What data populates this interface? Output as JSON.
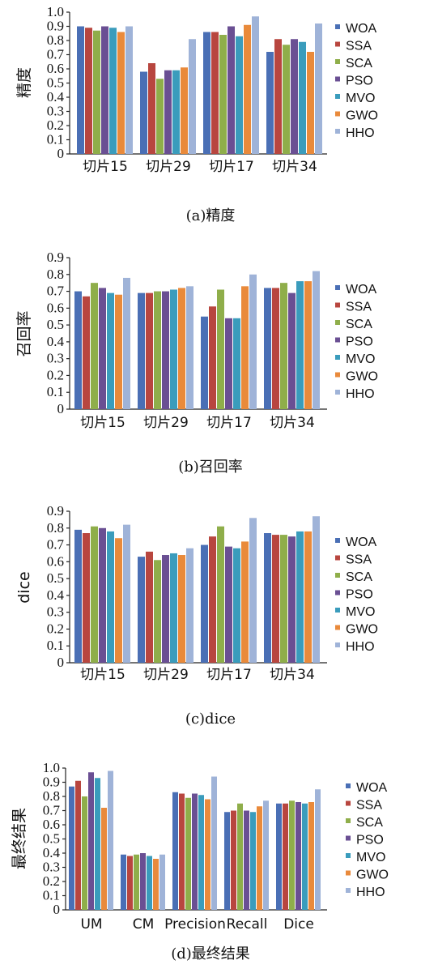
{
  "colors": {
    "WOA": "#4a6fb5",
    "SSA": "#b8463f",
    "SCA": "#8fae4a",
    "PSO": "#6a4f93",
    "MVO": "#3a9cbc",
    "GWO": "#e98a3b",
    "HHO": "#9fb3d8"
  },
  "chart_data": [
    {
      "type": "bar",
      "ylabel": "精度",
      "caption": "(a)精度",
      "categories": [
        "切片15",
        "切片29",
        "切片17",
        "切片34"
      ],
      "ylim": [
        0,
        1.0
      ],
      "yticks": [
        "0",
        "0.1",
        "0.2",
        "0.3",
        "0.4",
        "0.5",
        "0.6",
        "0.7",
        "0.8",
        "0.9",
        "1.0"
      ],
      "legend_position": "right",
      "series": [
        {
          "name": "WOA",
          "values": [
            0.9,
            0.58,
            0.86,
            0.72
          ]
        },
        {
          "name": "SSA",
          "values": [
            0.89,
            0.64,
            0.86,
            0.81
          ]
        },
        {
          "name": "SCA",
          "values": [
            0.87,
            0.53,
            0.84,
            0.77
          ]
        },
        {
          "name": "PSO",
          "values": [
            0.9,
            0.59,
            0.9,
            0.81
          ]
        },
        {
          "name": "MVO",
          "values": [
            0.89,
            0.59,
            0.83,
            0.79
          ]
        },
        {
          "name": "GWO",
          "values": [
            0.86,
            0.61,
            0.91,
            0.72
          ]
        },
        {
          "name": "HHO",
          "values": [
            0.9,
            0.81,
            0.97,
            0.92
          ]
        }
      ]
    },
    {
      "type": "bar",
      "ylabel": "召回率",
      "caption": "(b)召回率",
      "categories": [
        "切片15",
        "切片29",
        "切片17",
        "切片34"
      ],
      "ylim": [
        0,
        0.9
      ],
      "yticks": [
        "0",
        "0.1",
        "0.2",
        "0.3",
        "0.4",
        "0.5",
        "0.6",
        "0.7",
        "0.8",
        "0.9"
      ],
      "legend_position": "right",
      "series": [
        {
          "name": "WOA",
          "values": [
            0.7,
            0.69,
            0.55,
            0.72
          ]
        },
        {
          "name": "SSA",
          "values": [
            0.67,
            0.69,
            0.61,
            0.72
          ]
        },
        {
          "name": "SCA",
          "values": [
            0.75,
            0.7,
            0.71,
            0.75
          ]
        },
        {
          "name": "PSO",
          "values": [
            0.72,
            0.7,
            0.54,
            0.69
          ]
        },
        {
          "name": "MVO",
          "values": [
            0.69,
            0.71,
            0.54,
            0.76
          ]
        },
        {
          "name": "GWO",
          "values": [
            0.68,
            0.72,
            0.73,
            0.76
          ]
        },
        {
          "name": "HHO",
          "values": [
            0.78,
            0.73,
            0.8,
            0.82
          ]
        }
      ]
    },
    {
      "type": "bar",
      "ylabel": "dice",
      "caption": "(c)dice",
      "categories": [
        "切片15",
        "切片29",
        "切片17",
        "切片34"
      ],
      "ylim": [
        0,
        0.9
      ],
      "yticks": [
        "0",
        "0.1",
        "0.2",
        "0.3",
        "0.4",
        "0.5",
        "0.6",
        "0.7",
        "0.8",
        "0.9"
      ],
      "legend_position": "right",
      "series": [
        {
          "name": "WOA",
          "values": [
            0.79,
            0.63,
            0.7,
            0.77
          ]
        },
        {
          "name": "SSA",
          "values": [
            0.77,
            0.66,
            0.75,
            0.76
          ]
        },
        {
          "name": "SCA",
          "values": [
            0.81,
            0.61,
            0.81,
            0.76
          ]
        },
        {
          "name": "PSO",
          "values": [
            0.8,
            0.64,
            0.69,
            0.75
          ]
        },
        {
          "name": "MVO",
          "values": [
            0.78,
            0.65,
            0.68,
            0.78
          ]
        },
        {
          "name": "GWO",
          "values": [
            0.74,
            0.64,
            0.72,
            0.78
          ]
        },
        {
          "name": "HHO",
          "values": [
            0.82,
            0.68,
            0.86,
            0.87
          ]
        }
      ]
    },
    {
      "type": "bar",
      "ylabel": "最终结果",
      "caption": "(d)最终结果",
      "categories": [
        "UM",
        "CM",
        "Precision",
        "Recall",
        "Dice"
      ],
      "ylim": [
        0,
        1.0
      ],
      "yticks": [
        "0",
        "0.1",
        "0.2",
        "0.3",
        "0.4",
        "0.5",
        "0.6",
        "0.7",
        "0.8",
        "0.9",
        "1.0"
      ],
      "legend_position": "right",
      "series": [
        {
          "name": "WOA",
          "values": [
            0.87,
            0.39,
            0.83,
            0.69,
            0.75
          ]
        },
        {
          "name": "SSA",
          "values": [
            0.91,
            0.38,
            0.82,
            0.7,
            0.75
          ]
        },
        {
          "name": "SCA",
          "values": [
            0.8,
            0.39,
            0.79,
            0.75,
            0.77
          ]
        },
        {
          "name": "PSO",
          "values": [
            0.97,
            0.4,
            0.82,
            0.7,
            0.76
          ]
        },
        {
          "name": "MVO",
          "values": [
            0.93,
            0.38,
            0.81,
            0.69,
            0.75
          ]
        },
        {
          "name": "GWO",
          "values": [
            0.72,
            0.36,
            0.78,
            0.73,
            0.76
          ]
        },
        {
          "name": "HHO",
          "values": [
            0.98,
            0.39,
            0.94,
            0.77,
            0.85
          ]
        }
      ]
    }
  ]
}
